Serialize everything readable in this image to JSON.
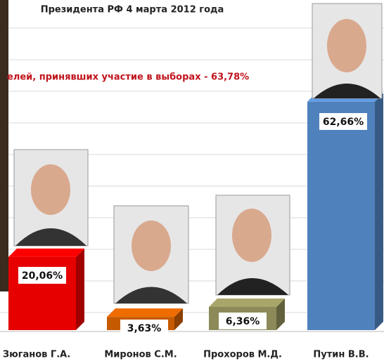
{
  "chart_data": {
    "type": "bar",
    "title": "Президента РФ  4 марта 2012 года",
    "subtitle": "елей, принявших участие в выборах - 63,78%",
    "categories": [
      "Зюганов Г.А.",
      "Миронов С.М.",
      "Прохоров М.Д.",
      "Путин В.В."
    ],
    "values": [
      20.06,
      3.63,
      6.36,
      62.66
    ],
    "value_labels": [
      "20,06%",
      "3,63%",
      "6,36%",
      "62,66%"
    ],
    "colors": [
      "#e60000",
      "#c65a00",
      "#8c8a58",
      "#4f81bd"
    ]
  }
}
